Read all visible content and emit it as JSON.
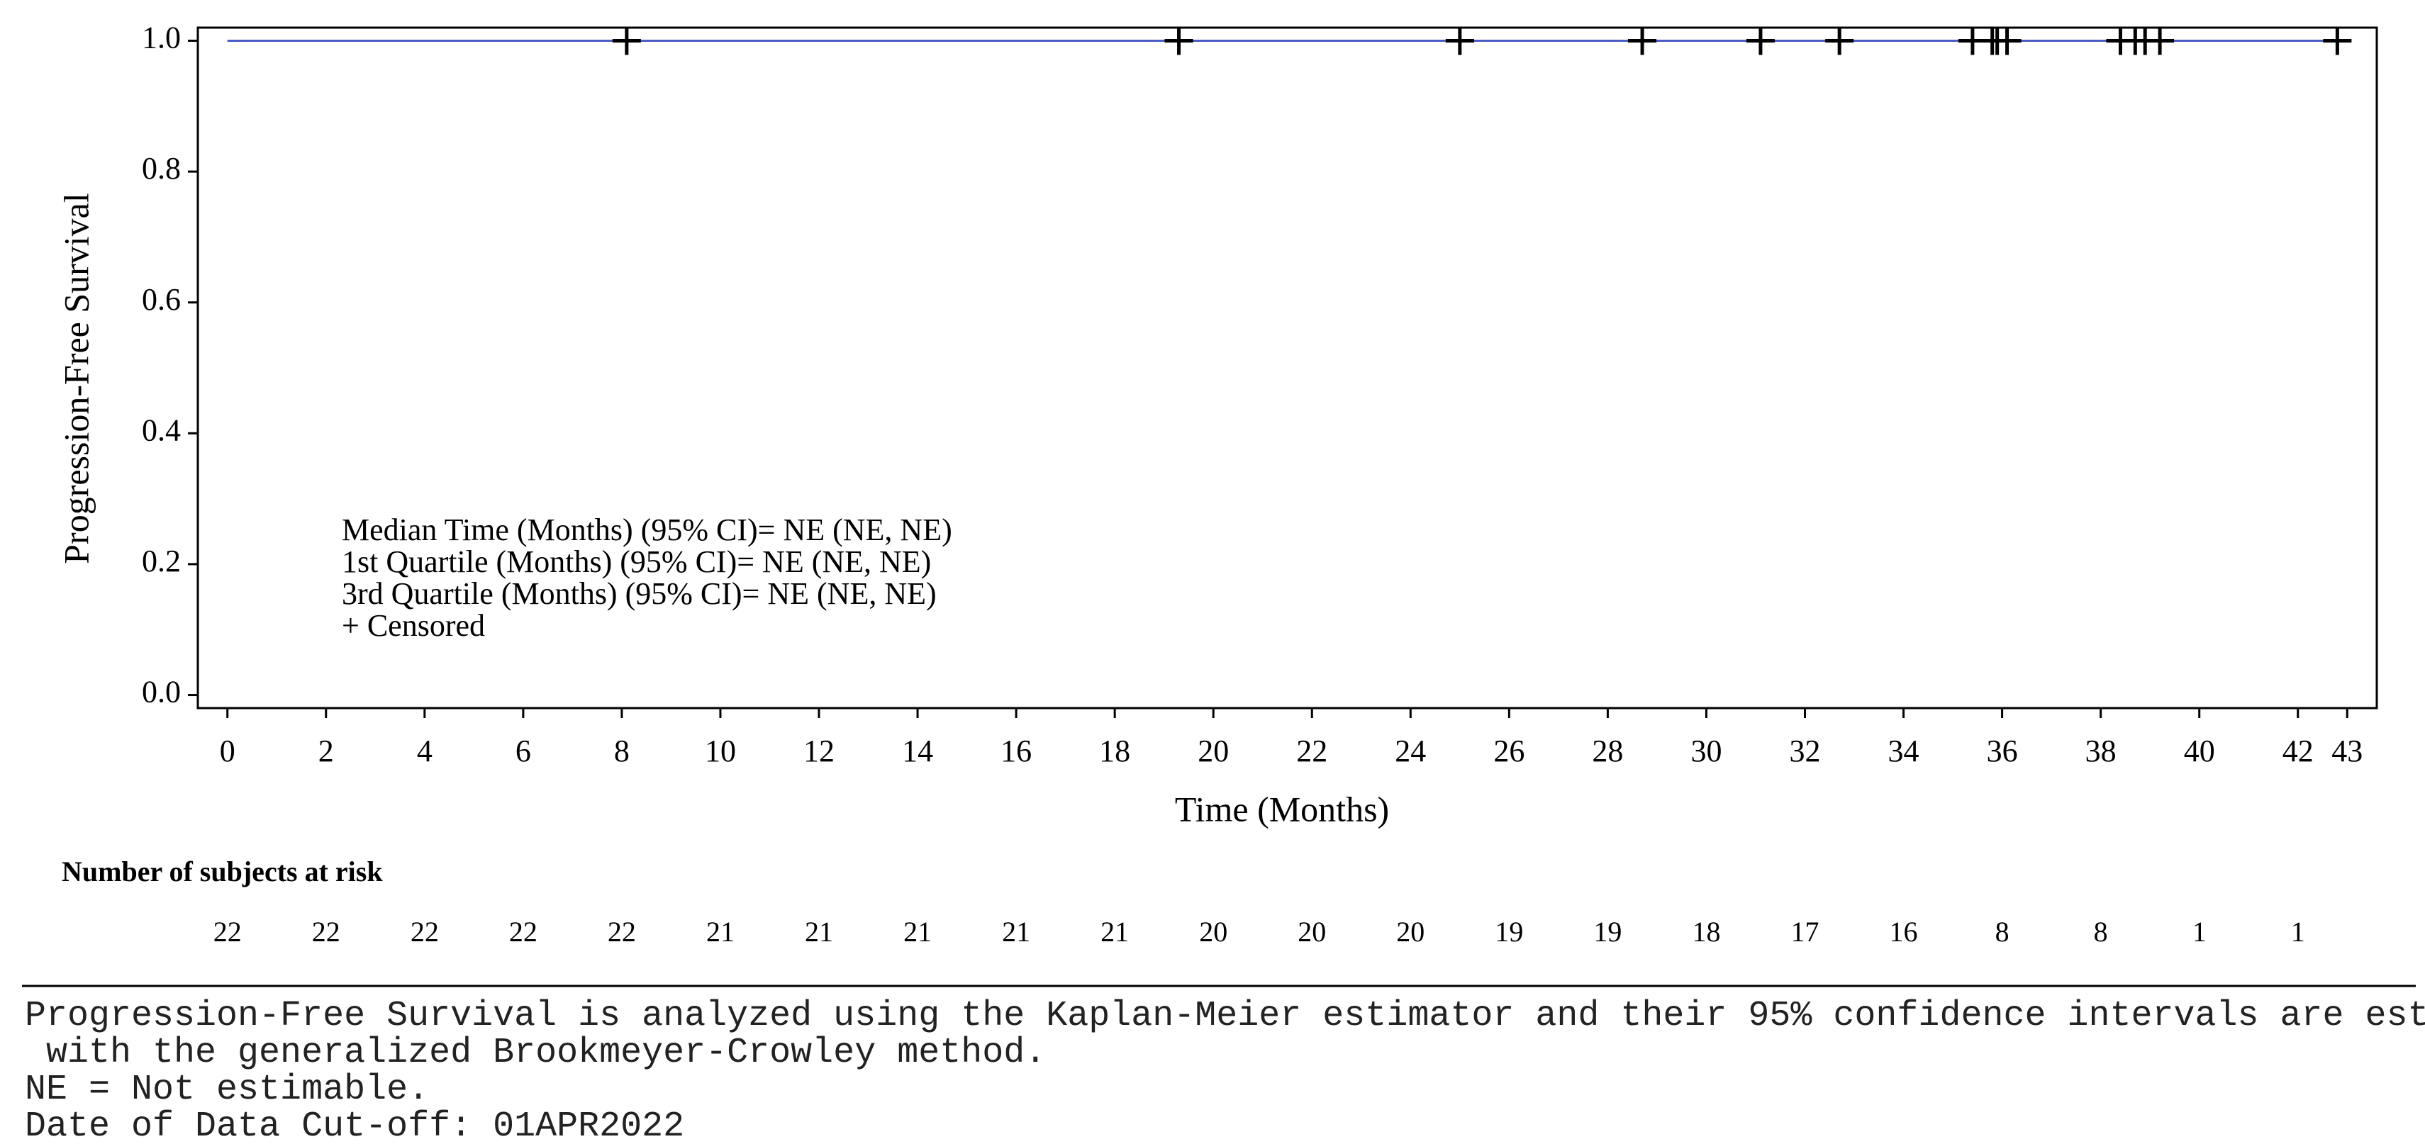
{
  "chart_data": {
    "type": "line",
    "y_label": "Progression-Free Survival",
    "x_label": "Time (Months)",
    "xlim": [
      -0.6,
      43.6
    ],
    "ylim": [
      -0.02,
      1.02
    ],
    "xticks": [
      0,
      2,
      4,
      6,
      8,
      10,
      12,
      14,
      16,
      18,
      20,
      22,
      24,
      26,
      28,
      30,
      32,
      34,
      36,
      38,
      40,
      42,
      43
    ],
    "yticks": [
      {
        "value": 0,
        "label": "0.0"
      },
      0.2,
      0.4,
      0.6,
      0.8,
      {
        "value": 1,
        "label": "1.0"
      }
    ],
    "series": [
      {
        "color": "#4b5cc4",
        "x": [
          0,
          42.8
        ],
        "values": [
          1.0,
          1.0
        ]
      }
    ],
    "censored": {
      "marker": "+",
      "color": "#000000",
      "x": [
        8.1,
        19.3,
        25.0,
        28.7,
        31.1,
        32.7,
        35.4,
        35.8,
        35.9,
        36.1,
        38.4,
        38.7,
        38.9,
        39.2,
        42.8
      ],
      "values": [
        1,
        1,
        1,
        1,
        1,
        1,
        1,
        1,
        1,
        1,
        1,
        1,
        1,
        1,
        1
      ]
    },
    "annotations": [
      "Median Time (Months) (95% CI)= NE (NE, NE)",
      "1st Quartile (Months) (95% CI)= NE (NE, NE)",
      "3rd Quartile (Months) (95% CI)= NE (NE, NE)",
      "+ Censored"
    ],
    "risk_table": {
      "title": "Number of subjects at risk",
      "values": [
        22,
        22,
        22,
        22,
        22,
        21,
        21,
        21,
        21,
        21,
        20,
        20,
        20,
        19,
        19,
        18,
        17,
        16,
        8,
        8,
        1,
        1
      ]
    }
  },
  "footnotes": [
    "Progression-Free Survival is analyzed using the Kaplan-Meier estimator and their 95% confidence intervals are estimated",
    " with the generalized Brookmeyer-Crowley method.",
    "NE = Not estimable.",
    "Date of Data Cut-off: 01APR2022"
  ]
}
